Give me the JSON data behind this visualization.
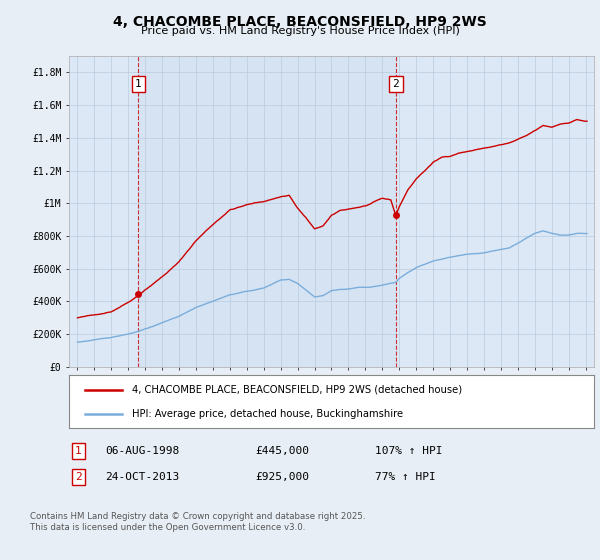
{
  "title": "4, CHACOMBE PLACE, BEACONSFIELD, HP9 2WS",
  "subtitle": "Price paid vs. HM Land Registry's House Price Index (HPI)",
  "background_color": "#e8eef5",
  "plot_bg_color": "#dce8f5",
  "grid_color": "#b8cce0",
  "red_color": "#cc0000",
  "blue_color": "#7aaddb",
  "dashed_line_color": "#cc0000",
  "ylim": [
    0,
    1900000
  ],
  "yticks": [
    0,
    200000,
    400000,
    600000,
    800000,
    1000000,
    1200000,
    1400000,
    1600000,
    1800000
  ],
  "ytick_labels": [
    "£0",
    "£200K",
    "£400K",
    "£600K",
    "£800K",
    "£1M",
    "£1.2M",
    "£1.4M",
    "£1.6M",
    "£1.8M"
  ],
  "xlim_start": 1994.5,
  "xlim_end": 2025.5,
  "xticks": [
    1995,
    1996,
    1997,
    1998,
    1999,
    2000,
    2001,
    2002,
    2003,
    2004,
    2005,
    2006,
    2007,
    2008,
    2009,
    2010,
    2011,
    2012,
    2013,
    2014,
    2015,
    2016,
    2017,
    2018,
    2019,
    2020,
    2021,
    2022,
    2023,
    2024,
    2025
  ],
  "sale1_x": 1998.6,
  "sale1_y": 445000,
  "sale1_label": "1",
  "sale2_x": 2013.8,
  "sale2_y": 925000,
  "sale2_label": "2",
  "legend_entries": [
    "4, CHACOMBE PLACE, BEACONSFIELD, HP9 2WS (detached house)",
    "HPI: Average price, detached house, Buckinghamshire"
  ],
  "annotation_row1": [
    "1",
    "06-AUG-1998",
    "£445,000",
    "107% ↑ HPI"
  ],
  "annotation_row2": [
    "2",
    "24-OCT-2013",
    "£925,000",
    "77% ↑ HPI"
  ],
  "footnote": "Contains HM Land Registry data © Crown copyright and database right 2025.\nThis data is licensed under the Open Government Licence v3.0."
}
